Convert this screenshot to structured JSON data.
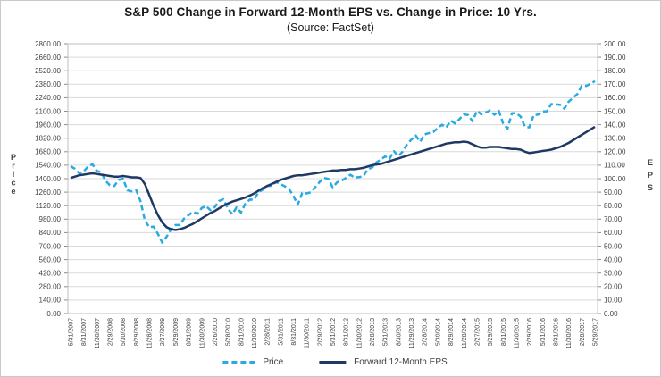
{
  "title": "S&P 500 Change in Forward 12-Month EPS vs. Change in Price: 10 Yrs.",
  "subtitle": "(Source: FactSet)",
  "legend": {
    "price_label": "Price",
    "eps_label": "Forward 12-Month EPS"
  },
  "colors": {
    "price_line": "#29ABE2",
    "eps_line": "#1F3864",
    "grid": "#D9D9D9",
    "plot_border": "#BFBFBF",
    "tick_mark": "#8C8C8C",
    "tick_text": "#404040"
  },
  "chart_data": {
    "type": "line",
    "title": "S&P 500 Change in Forward 12-Month EPS vs. Change in Price: 10 Yrs.",
    "subtitle": "(Source: FactSet)",
    "ylabel_left": "Price",
    "ylabel_right": "EPS",
    "ylim_left": [
      0,
      2800
    ],
    "ylim_right": [
      0,
      200
    ],
    "grid": "horizontal-only",
    "legend_position": "bottom",
    "y_left_ticks": [
      "2800.00",
      "2660.00",
      "2520.00",
      "2380.00",
      "2240.00",
      "2100.00",
      "1960.00",
      "1820.00",
      "1680.00",
      "1540.00",
      "1400.00",
      "1260.00",
      "1120.00",
      "980.00",
      "840.00",
      "700.00",
      "560.00",
      "420.00",
      "280.00",
      "140.00",
      "0.00"
    ],
    "y_right_ticks": [
      "200.00",
      "190.00",
      "180.00",
      "170.00",
      "160.00",
      "150.00",
      "140.00",
      "130.00",
      "120.00",
      "110.00",
      "100.00",
      "90.00",
      "80.00",
      "70.00",
      "60.00",
      "50.00",
      "40.00",
      "30.00",
      "20.00",
      "10.00",
      "0.00"
    ],
    "x_tick_labels": [
      "5/31/2007",
      "8/31/2007",
      "11/30/2007",
      "2/29/2008",
      "5/30/2008",
      "8/29/2008",
      "11/28/2008",
      "2/27/2009",
      "5/29/2009",
      "8/31/2009",
      "11/30/2009",
      "2/26/2010",
      "5/28/2010",
      "8/31/2010",
      "11/30/2010",
      "2/28/2011",
      "5/31/2011",
      "8/31/2011",
      "11/30/2011",
      "2/29/2012",
      "5/31/2012",
      "8/31/2012",
      "11/30/2012",
      "2/28/2013",
      "5/31/2013",
      "8/30/2013",
      "11/29/2013",
      "2/28/2014",
      "5/30/2014",
      "8/29/2014",
      "11/28/2014",
      "2/27/2015",
      "5/29/2015",
      "8/31/2015",
      "11/30/2015",
      "2/29/2016",
      "5/31/2016",
      "8/31/2016",
      "11/30/2016",
      "2/28/2017",
      "5/29/2017"
    ],
    "x_tick_every": 3,
    "x_is_monthly": true,
    "series": [
      {
        "name": "Price",
        "axis": "left",
        "style": "dashed",
        "color": "#29ABE2",
        "values": [
          1530,
          1503,
          1455,
          1474,
          1527,
          1549,
          1481,
          1468,
          1379,
          1331,
          1323,
          1386,
          1400,
          1280,
          1267,
          1283,
          1166,
          969,
          896,
          903,
          826,
          735,
          798,
          873,
          919,
          919,
          987,
          1021,
          1057,
          1036,
          1096,
          1115,
          1074,
          1104,
          1169,
          1187,
          1089,
          1031,
          1102,
          1049,
          1141,
          1183,
          1181,
          1258,
          1286,
          1327,
          1326,
          1364,
          1345,
          1321,
          1292,
          1219,
          1131,
          1253,
          1247,
          1258,
          1312,
          1366,
          1408,
          1398,
          1310,
          1362,
          1379,
          1407,
          1441,
          1412,
          1416,
          1426,
          1498,
          1515,
          1569,
          1598,
          1631,
          1606,
          1686,
          1633,
          1682,
          1757,
          1806,
          1848,
          1783,
          1859,
          1872,
          1884,
          1924,
          1960,
          1931,
          2003,
          1972,
          2018,
          2068,
          2059,
          1995,
          2105,
          2068,
          2086,
          2107,
          2063,
          2104,
          1972,
          1920,
          2079,
          2080,
          2044,
          1940,
          1932,
          2060,
          2065,
          2097,
          2099,
          2174,
          2171,
          2168,
          2126,
          2199,
          2239,
          2279,
          2364,
          2363,
          2384,
          2412
        ]
      },
      {
        "name": "Forward 12-Month EPS",
        "axis": "right",
        "style": "solid",
        "color": "#1F3864",
        "values": [
          100.5,
          101.5,
          102.5,
          103,
          103.5,
          104,
          103.5,
          103,
          102.5,
          102,
          101.5,
          101.5,
          102,
          101.5,
          101,
          101,
          100.5,
          96,
          88,
          80,
          73,
          67.5,
          64,
          62.5,
          62,
          62.5,
          63.5,
          65,
          66.5,
          68.5,
          70.5,
          72.5,
          74.5,
          76,
          78,
          80,
          81.5,
          83,
          84,
          85,
          86,
          87.5,
          89,
          91,
          93,
          94.5,
          96,
          97.5,
          99,
          100,
          101,
          102,
          102.5,
          102.5,
          103,
          103.5,
          104,
          104.5,
          105,
          105.5,
          106,
          106,
          106.5,
          106.5,
          107,
          107,
          107.5,
          108,
          109,
          110,
          110.5,
          111,
          112,
          113,
          114,
          115,
          116,
          117,
          118,
          119,
          120,
          121,
          122,
          123,
          124,
          125,
          126,
          126.5,
          127,
          127,
          127.5,
          127,
          125.5,
          124,
          123,
          123,
          123.5,
          123.5,
          123.5,
          123,
          122.5,
          122,
          122,
          121.5,
          120,
          119,
          119.5,
          120,
          120.5,
          121,
          121.5,
          122.5,
          123.5,
          125,
          126.5,
          128.5,
          130.5,
          132.5,
          134.5,
          136.5,
          138.5
        ]
      }
    ]
  }
}
